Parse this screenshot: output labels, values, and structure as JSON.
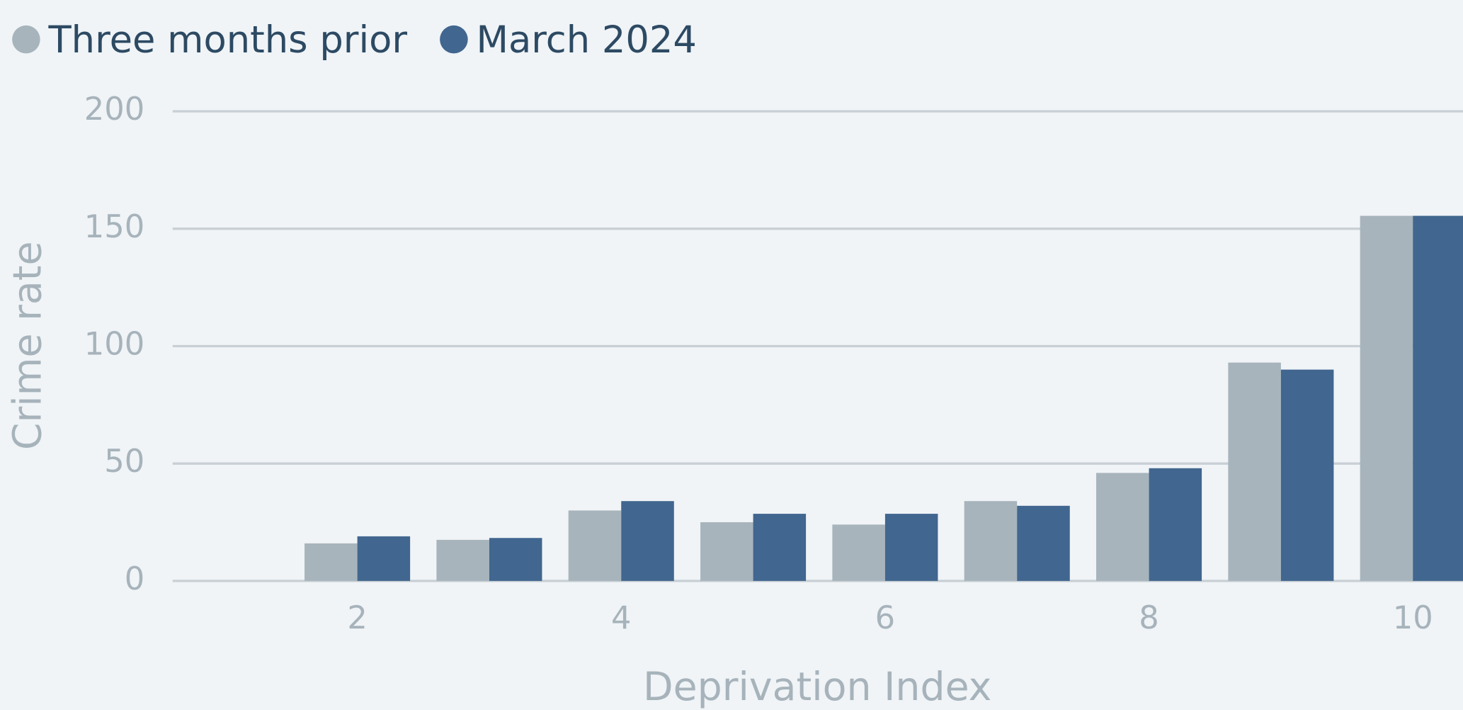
{
  "chart_data": {
    "type": "bar",
    "x": [
      2,
      3,
      4,
      5,
      6,
      7,
      8,
      9,
      10
    ],
    "series": [
      {
        "name": "Three months prior",
        "color": "#a7b4bc",
        "values": [
          16,
          17.5,
          30,
          25,
          24,
          34,
          46,
          93,
          155.5
        ]
      },
      {
        "name": "March 2024",
        "color": "#41668f",
        "values": [
          19,
          18.3,
          34,
          28.6,
          28.6,
          32,
          48,
          90,
          155.5
        ]
      }
    ],
    "xlabel": "Deprivation Index",
    "ylabel": "Crime rate",
    "xlim": [
      0.6,
      10.38
    ],
    "xticks": [
      2,
      4,
      6,
      8,
      10
    ],
    "ylim": [
      0,
      200
    ],
    "yticks": [
      0,
      50,
      100,
      150,
      200
    ],
    "grid": true,
    "legend": "top-left"
  }
}
